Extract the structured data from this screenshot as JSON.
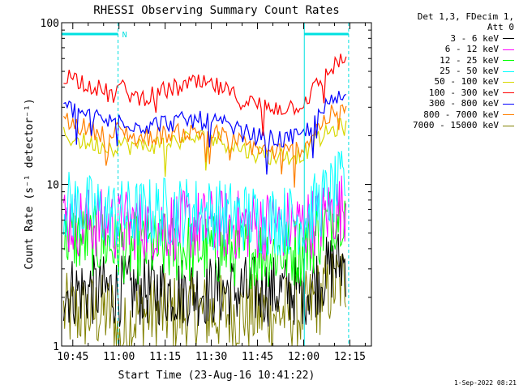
{
  "chart_data": {
    "type": "line",
    "title": "RHESSI Observing Summary Count Rates",
    "xlabel": "Start Time (23-Aug-16 10:41:22)",
    "ylabel": "Count Rate (s⁻¹ detector⁻¹)",
    "yscale": "log",
    "ylim": [
      1,
      100
    ],
    "y_ticks": [
      "1",
      "10",
      "100"
    ],
    "x_ticks": [
      "10:45",
      "11:00",
      "11:15",
      "11:30",
      "11:45",
      "12:00",
      "12:15"
    ],
    "x_tick_minutes": [
      45,
      60,
      75,
      90,
      105,
      120,
      135
    ],
    "xlim_minutes": [
      41.37,
      142
    ],
    "legend_header": [
      "Det 1,3, FDecim 1,",
      "Att 0"
    ],
    "legend_position": "top-right",
    "flag_label": "N",
    "flag_intervals_minutes": [
      [
        41.4,
        59.7
      ],
      [
        120.2,
        134.6
      ]
    ],
    "dashed_markers_minutes": [
      59.7,
      134.6
    ],
    "solid_markers_minutes": [
      120.2
    ],
    "x": [
      42,
      50,
      58,
      60,
      66,
      75,
      85,
      92,
      100,
      108,
      115,
      120,
      125,
      130,
      134
    ],
    "series": [
      {
        "name": "3 - 6 keV",
        "color": "#000000",
        "style": "noisy",
        "values": [
          2.2,
          2.2,
          2.2,
          2.2,
          2.2,
          2.2,
          2.2,
          2.2,
          2.2,
          2.2,
          2.2,
          2.2,
          2.6,
          3.2,
          3.3
        ]
      },
      {
        "name": "6 - 12 keV",
        "color": "#ff00ff",
        "style": "noisy",
        "values": [
          6.0,
          5.8,
          5.6,
          5.6,
          5.6,
          5.6,
          5.6,
          5.6,
          5.6,
          5.6,
          5.6,
          5.6,
          6.0,
          7.0,
          7.5
        ]
      },
      {
        "name": "12 - 25 keV",
        "color": "#00ff00",
        "style": "noisy",
        "values": [
          4.8,
          4.5,
          4.2,
          4.1,
          4.0,
          4.0,
          4.0,
          3.9,
          3.8,
          3.8,
          3.8,
          3.9,
          5.0,
          6.5,
          7.5
        ]
      },
      {
        "name": "25 - 50 keV",
        "color": "#00ffff",
        "style": "noisy",
        "values": [
          7.5,
          7.0,
          6.5,
          6.5,
          6.5,
          6.8,
          6.8,
          6.5,
          6.3,
          6.0,
          6.0,
          6.1,
          7.5,
          9.0,
          10.5
        ]
      },
      {
        "name": "50 - 100 keV",
        "color": "#d8d800",
        "style": "line",
        "values": [
          20,
          18,
          17,
          18,
          17,
          18,
          19.5,
          19,
          16.5,
          15,
          15,
          15.5,
          19,
          22,
          23
        ]
      },
      {
        "name": "100 - 300 keV",
        "color": "#ff0000",
        "style": "line",
        "values": [
          48,
          42,
          35,
          40,
          34,
          38,
          42,
          40,
          33,
          30,
          30,
          32,
          42,
          55,
          60
        ]
      },
      {
        "name": "300 - 800 keV",
        "color": "#0000ff",
        "style": "line",
        "values": [
          30,
          27,
          24,
          26,
          23,
          24,
          25,
          24,
          21,
          19,
          19,
          20,
          27,
          33,
          36
        ]
      },
      {
        "name": "800 - 7000 keV",
        "color": "#ff8000",
        "style": "line",
        "values": [
          25,
          22,
          20,
          22,
          19,
          20.5,
          21,
          20.5,
          18,
          16,
          16,
          17,
          23,
          28,
          31
        ]
      },
      {
        "name": "7000 - 15000 keV",
        "color": "#808000",
        "style": "band",
        "values": [
          1.6,
          1.6,
          1.6,
          1.0,
          1.6,
          1.6,
          1.6,
          1.6,
          1.6,
          1.6,
          1.6,
          1.6,
          2.0,
          2.4,
          2.6
        ]
      }
    ],
    "footer_date": "1-Sep-2022 08:21"
  }
}
